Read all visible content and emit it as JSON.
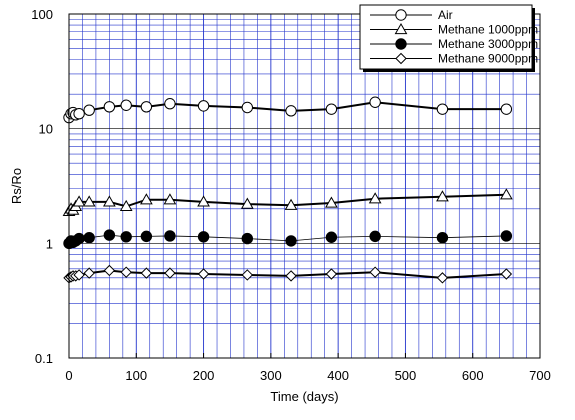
{
  "chart_data": {
    "type": "line",
    "xlabel": "Time (days)",
    "ylabel": "Rs/Ro",
    "xlim": [
      0,
      700
    ],
    "ylim": [
      0.1,
      100
    ],
    "y_scale": "log",
    "grid": true,
    "legend_position": "top-right",
    "x_ticks": [
      0,
      100,
      200,
      300,
      400,
      500,
      600,
      700
    ],
    "y_ticks": [
      0.1,
      1,
      10,
      100
    ],
    "x_tick_labels": [
      "0",
      "100",
      "200",
      "300",
      "400",
      "500",
      "600",
      "700"
    ],
    "y_tick_labels": [
      "0.1",
      "1",
      "10",
      "100"
    ],
    "series": [
      {
        "name": "Air",
        "marker": "open-circle",
        "line_width": 2,
        "x": [
          0,
          3,
          6,
          10,
          15,
          30,
          60,
          85,
          115,
          150,
          200,
          265,
          330,
          390,
          455,
          555,
          650
        ],
        "y": [
          12.5,
          13.5,
          13.8,
          13.2,
          13.5,
          14.5,
          15.5,
          16.0,
          15.5,
          16.5,
          15.8,
          15.3,
          14.3,
          14.8,
          17.0,
          14.8,
          14.8
        ]
      },
      {
        "name": "Methane 1000ppm",
        "marker": "open-triangle",
        "line_width": 2,
        "x": [
          0,
          3,
          6,
          10,
          15,
          30,
          60,
          85,
          115,
          150,
          200,
          265,
          330,
          390,
          455,
          555,
          650
        ],
        "y": [
          1.9,
          2.0,
          1.95,
          2.1,
          2.3,
          2.3,
          2.3,
          2.1,
          2.4,
          2.4,
          2.3,
          2.2,
          2.15,
          2.25,
          2.45,
          2.55,
          2.65
        ]
      },
      {
        "name": "Methane 3000ppm",
        "marker": "filled-circle",
        "line_width": 0.8,
        "x": [
          0,
          3,
          6,
          10,
          15,
          30,
          60,
          85,
          115,
          150,
          200,
          265,
          330,
          390,
          455,
          555,
          650
        ],
        "y": [
          1.0,
          1.05,
          1.02,
          1.05,
          1.1,
          1.12,
          1.18,
          1.14,
          1.15,
          1.16,
          1.14,
          1.1,
          1.05,
          1.13,
          1.15,
          1.12,
          1.16
        ]
      },
      {
        "name": "Methane 9000ppm",
        "marker": "open-diamond",
        "line_width": 2,
        "x": [
          0,
          3,
          6,
          10,
          15,
          30,
          60,
          85,
          115,
          150,
          200,
          265,
          330,
          390,
          455,
          555,
          650
        ],
        "y": [
          0.5,
          0.51,
          0.52,
          0.52,
          0.53,
          0.55,
          0.58,
          0.56,
          0.55,
          0.55,
          0.54,
          0.53,
          0.52,
          0.54,
          0.56,
          0.5,
          0.54
        ]
      }
    ]
  }
}
